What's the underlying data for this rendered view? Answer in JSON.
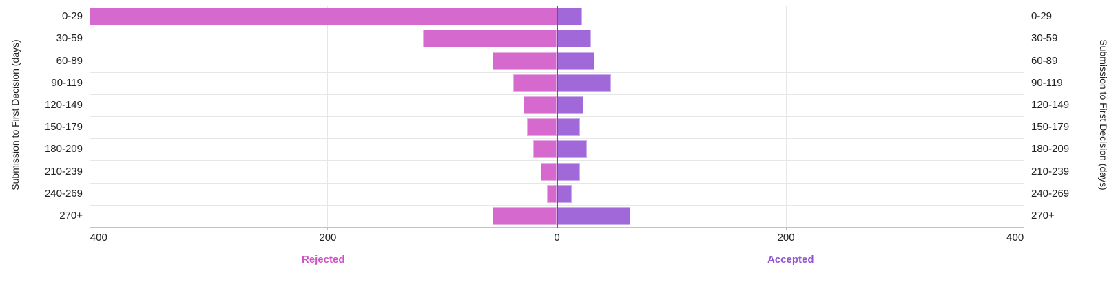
{
  "chart_data": {
    "type": "bar",
    "variant": "diverging-horizontal",
    "title": "",
    "categories": [
      "0-29",
      "30-59",
      "60-89",
      "90-119",
      "120-149",
      "150-179",
      "180-209",
      "210-239",
      "240-269",
      "270+"
    ],
    "series": [
      {
        "name": "Rejected",
        "side": "left",
        "color": "#d669ce",
        "label_color": "#d053c6",
        "values": [
          408,
          117,
          56,
          38,
          29,
          26,
          21,
          14,
          9,
          56
        ]
      },
      {
        "name": "Accepted",
        "side": "right",
        "color": "#a068d9",
        "label_color": "#9355d4",
        "values": [
          22,
          30,
          33,
          47,
          23,
          20,
          26,
          20,
          13,
          64
        ]
      }
    ],
    "x_axis": {
      "tick_values": [
        -400,
        -200,
        0,
        200,
        400
      ],
      "tick_labels": [
        "400",
        "200",
        "0",
        "200",
        "400"
      ],
      "max_abs": 408,
      "grid": true
    },
    "y_axis_title_left": "Submission to First Decision (days)",
    "y_axis_title_right": "Submission to First Decision (days)",
    "colors": {
      "grid": "#e6e6e6",
      "zero_line": "#5f5f5f",
      "axis_line": "#c2c2c2",
      "text": "#212121",
      "background": "#ffffff"
    },
    "legend_position": "bottom"
  }
}
